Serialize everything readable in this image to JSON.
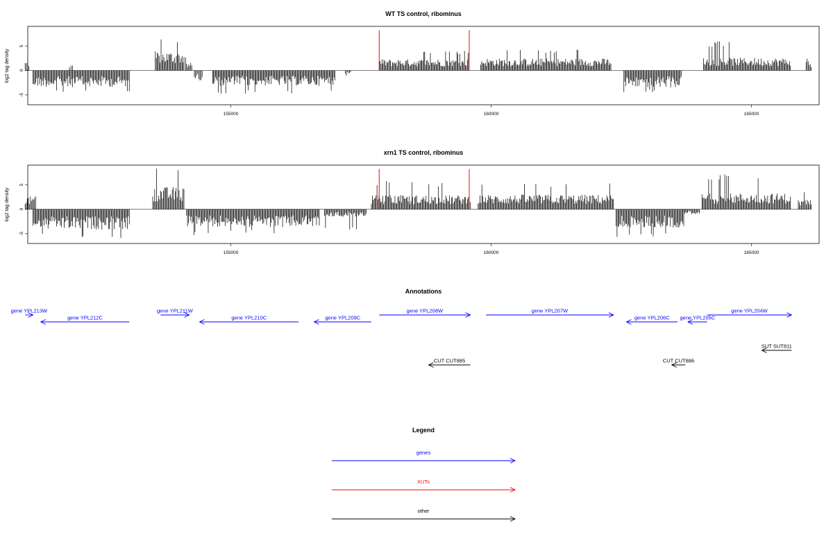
{
  "colors": {
    "genes": "#0000ff",
    "XUTs": "#ff0000",
    "other": "#000000"
  },
  "chart_data": [
    {
      "type": "bar",
      "title": "WT TS control, ribominus",
      "ylabel": "log2 tag density",
      "xlim": [
        151100,
        166300
      ],
      "ylim": [
        -7,
        9
      ],
      "xticks": [
        155000,
        160000,
        165000
      ],
      "xtick_labels": [
        "155000",
        "160000",
        "165000"
      ],
      "yticks": [
        -5,
        0,
        5
      ],
      "ytick_labels": [
        "-5",
        "0",
        "5"
      ],
      "xut_lines_x": [
        157850,
        159580
      ],
      "blocks": [
        {
          "x0": 151050,
          "x1": 151120,
          "mean": 1.5,
          "max": 3.2,
          "up": true
        },
        {
          "x0": 151200,
          "x1": 153050,
          "mean": -2.6,
          "max": -4.8,
          "up": false
        },
        {
          "x0": 151900,
          "x1": 151960,
          "mean": 0.8,
          "max": 1.5,
          "up": true
        },
        {
          "x0": 153550,
          "x1": 154100,
          "mean": 3.0,
          "max": 6.8,
          "up": true
        },
        {
          "x0": 154130,
          "x1": 154250,
          "mean": 1.2,
          "max": 2.6,
          "up": true
        },
        {
          "x0": 154300,
          "x1": 154450,
          "mean": -1.5,
          "max": -2.5,
          "up": false
        },
        {
          "x0": 154650,
          "x1": 157000,
          "mean": -2.4,
          "max": -4.8,
          "up": false
        },
        {
          "x0": 157200,
          "x1": 157300,
          "mean": -0.5,
          "max": -1.1,
          "up": false
        },
        {
          "x0": 157850,
          "x1": 159580,
          "mean": 1.8,
          "max": 4.2,
          "up": true
        },
        {
          "x0": 159800,
          "x1": 162300,
          "mean": 1.9,
          "max": 4.3,
          "up": true
        },
        {
          "x0": 162550,
          "x1": 163650,
          "mean": -2.7,
          "max": -4.8,
          "up": false
        },
        {
          "x0": 164080,
          "x1": 165750,
          "mean": 2.0,
          "max": 6.0,
          "up": true
        },
        {
          "x0": 166050,
          "x1": 166150,
          "mean": 1.5,
          "max": 2.8,
          "up": true
        }
      ]
    },
    {
      "type": "bar",
      "title": "xrn1 TS control, ribominus",
      "ylabel": "log2 tag density",
      "xlim": [
        151100,
        166300
      ],
      "ylim": [
        -7,
        9
      ],
      "xticks": [
        155000,
        160000,
        165000
      ],
      "xtick_labels": [
        "155000",
        "160000",
        "165000"
      ],
      "yticks": [
        -5,
        0,
        5
      ],
      "ytick_labels": [
        "-5",
        "0",
        "5"
      ],
      "xut_lines_x": [
        157850,
        159580
      ],
      "blocks": [
        {
          "x0": 151050,
          "x1": 151250,
          "mean": 2.0,
          "max": 5.0,
          "up": true
        },
        {
          "x0": 151200,
          "x1": 153050,
          "mean": -3.2,
          "max": -6.0,
          "up": false
        },
        {
          "x0": 153500,
          "x1": 154100,
          "mean": 3.5,
          "max": 8.5,
          "up": true
        },
        {
          "x0": 154150,
          "x1": 156700,
          "mean": -2.8,
          "max": -5.3,
          "up": false
        },
        {
          "x0": 156800,
          "x1": 157600,
          "mean": -1.2,
          "max": -4.6,
          "up": false
        },
        {
          "x0": 157700,
          "x1": 159600,
          "mean": 2.2,
          "max": 5.8,
          "up": true
        },
        {
          "x0": 159750,
          "x1": 162350,
          "mean": 2.3,
          "max": 5.3,
          "up": true
        },
        {
          "x0": 162400,
          "x1": 163700,
          "mean": -2.9,
          "max": -6.0,
          "up": false
        },
        {
          "x0": 163700,
          "x1": 164000,
          "mean": -0.8,
          "max": -2.0,
          "up": false
        },
        {
          "x0": 164050,
          "x1": 165750,
          "mean": 2.5,
          "max": 7.5,
          "up": true
        },
        {
          "x0": 165900,
          "x1": 166150,
          "mean": 1.5,
          "max": 3.5,
          "up": true
        }
      ]
    }
  ],
  "annotations": {
    "title": "Annotations",
    "items": [
      {
        "label": "gene YPL213W",
        "type": "genes",
        "start": 151050,
        "end": 151200,
        "strand": "+",
        "row": 0
      },
      {
        "label": "gene YPL212C",
        "type": "genes",
        "start": 151350,
        "end": 153050,
        "strand": "-",
        "row": 1
      },
      {
        "label": "gene YPL211W",
        "type": "genes",
        "start": 153650,
        "end": 154200,
        "strand": "+",
        "row": 0
      },
      {
        "label": "gene YPL210C",
        "type": "genes",
        "start": 154400,
        "end": 156300,
        "strand": "-",
        "row": 1
      },
      {
        "label": "gene YPL209C",
        "type": "genes",
        "start": 156600,
        "end": 157700,
        "strand": "-",
        "row": 1
      },
      {
        "label": "gene YPL208W",
        "type": "genes",
        "start": 157850,
        "end": 159600,
        "strand": "+",
        "row": 0
      },
      {
        "label": "gene YPL207W",
        "type": "genes",
        "start": 159900,
        "end": 162350,
        "strand": "+",
        "row": 0
      },
      {
        "label": "gene YPL206C",
        "type": "genes",
        "start": 162600,
        "end": 163580,
        "strand": "-",
        "row": 1
      },
      {
        "label": "gene YPL205C",
        "type": "genes",
        "start": 163780,
        "end": 164150,
        "strand": "-",
        "row": 1
      },
      {
        "label": "gene YPL204W",
        "type": "genes",
        "start": 164150,
        "end": 165770,
        "strand": "+",
        "row": 0
      },
      {
        "label": "SUT SUT811",
        "type": "other",
        "start": 165200,
        "end": 165770,
        "strand": "-",
        "row": 2
      },
      {
        "label": "CUT CUT885",
        "type": "other",
        "start": 158800,
        "end": 159600,
        "strand": "-",
        "row": 3
      },
      {
        "label": "CUT CUT886",
        "type": "other",
        "start": 163470,
        "end": 163730,
        "strand": "-",
        "row": 3
      }
    ]
  },
  "legend": {
    "title": "Legend",
    "entries": [
      {
        "label": "genes",
        "color_key": "genes"
      },
      {
        "label": "XUTs",
        "color_key": "XUTs"
      },
      {
        "label": "other",
        "color_key": "other"
      }
    ]
  }
}
